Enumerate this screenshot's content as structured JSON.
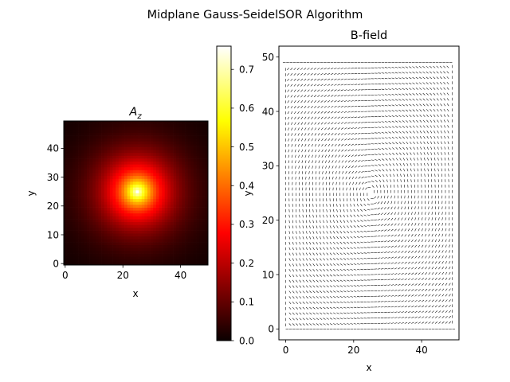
{
  "suptitle": "Midplane Gauss-SeidelSOR Algorithm",
  "chart_data": [
    {
      "type": "heatmap",
      "title_main": "A",
      "title_sub": "z",
      "xlabel": "x",
      "ylabel": "y",
      "grid_size": 50,
      "peak_at": [
        25,
        25
      ],
      "peak_value": 0.76,
      "colormap": "hot",
      "xlim": [
        0,
        49
      ],
      "ylim": [
        0,
        49
      ],
      "x_ticks": [
        "0",
        "20",
        "40"
      ],
      "y_ticks": [
        "0",
        "10",
        "20",
        "30",
        "40"
      ],
      "grid": false,
      "colorbar": {
        "range": [
          0.0,
          0.76
        ],
        "ticks": [
          "0.0",
          "0.1",
          "0.2",
          "0.3",
          "0.4",
          "0.5",
          "0.6",
          "0.7"
        ]
      }
    },
    {
      "type": "quiver",
      "title": "B-field",
      "xlabel": "x",
      "ylabel": "y",
      "grid_size": 50,
      "center": [
        25,
        25
      ],
      "field": "circulation around center",
      "xlim": [
        -2,
        51
      ],
      "ylim": [
        -2,
        52
      ],
      "x_ticks": [
        "0",
        "20",
        "40"
      ],
      "y_ticks": [
        "0",
        "10",
        "20",
        "30",
        "40",
        "50"
      ],
      "grid": false,
      "arrow_color": "#000000"
    }
  ]
}
